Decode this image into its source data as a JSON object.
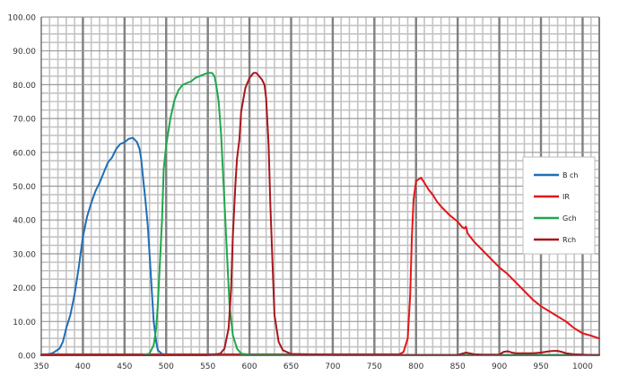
{
  "chart_data": {
    "type": "line",
    "title": "",
    "xlabel": "",
    "ylabel": "",
    "xlim": [
      350,
      1020
    ],
    "ylim": [
      0,
      100
    ],
    "x_ticks": [
      "350",
      "400",
      "450",
      "500",
      "550",
      "600",
      "650",
      "700",
      "750",
      "800",
      "850",
      "900",
      "950",
      "1000"
    ],
    "y_ticks": [
      "0.00",
      "10.00",
      "20.00",
      "30.00",
      "40.00",
      "50.00",
      "60.00",
      "70.00",
      "80.00",
      "90.00",
      "100.00"
    ],
    "grid": true,
    "legend_position": "right",
    "series": [
      {
        "name": "B ch",
        "color": "#1f6fb5",
        "x": [
          350,
          362,
          366,
          372,
          376,
          380,
          385,
          390,
          395,
          400,
          405,
          410,
          415,
          420,
          425,
          430,
          435,
          440,
          445,
          450,
          455,
          460,
          465,
          468,
          470,
          472,
          475,
          478,
          480,
          483,
          485,
          488,
          490,
          495,
          500,
          510,
          550,
          600,
          700,
          800,
          900,
          1000,
          1020
        ],
        "y": [
          0,
          0.5,
          1.0,
          2.0,
          4.0,
          8.0,
          12.0,
          18.0,
          26.0,
          35.0,
          41.0,
          45.0,
          48.5,
          51.0,
          54.0,
          57.0,
          58.5,
          61.0,
          62.5,
          63.0,
          64.0,
          64.3,
          63.0,
          61.0,
          58.0,
          53.0,
          46.0,
          38.0,
          30.0,
          18.0,
          10.0,
          4.0,
          1.5,
          0.4,
          0.2,
          0.1,
          0.05,
          0.05,
          0.05,
          0.05,
          0.05,
          0.05,
          0.05
        ]
      },
      {
        "name": "IR",
        "color": "#e3161b",
        "x": [
          350,
          500,
          600,
          700,
          780,
          785,
          790,
          793,
          795,
          797,
          800,
          803,
          806,
          810,
          815,
          820,
          825,
          830,
          840,
          850,
          855,
          858,
          860,
          862,
          870,
          880,
          890,
          900,
          910,
          920,
          930,
          940,
          950,
          960,
          970,
          980,
          990,
          1000,
          1010,
          1020
        ],
        "y": [
          0.3,
          0.3,
          0.3,
          0.3,
          0.3,
          1.0,
          5.0,
          18.0,
          35.0,
          46.0,
          51.5,
          52.0,
          52.5,
          51.0,
          49.0,
          47.5,
          45.5,
          44.0,
          41.5,
          39.5,
          38.0,
          37.5,
          38.0,
          36.0,
          33.5,
          31.0,
          28.5,
          26.0,
          24.0,
          21.5,
          19.0,
          16.5,
          14.5,
          13.0,
          11.5,
          10.0,
          8.0,
          6.5,
          5.8,
          5.0
        ]
      },
      {
        "name": "Gch",
        "color": "#1ea84b",
        "x": [
          350,
          470,
          480,
          485,
          488,
          490,
          492,
          495,
          497,
          500,
          505,
          510,
          515,
          520,
          525,
          530,
          535,
          540,
          545,
          550,
          555,
          558,
          560,
          563,
          566,
          570,
          573,
          576,
          580,
          585,
          590,
          600,
          650,
          700,
          800,
          900,
          1000,
          1020
        ],
        "y": [
          0,
          0,
          0.5,
          3.0,
          8.0,
          15.0,
          25.0,
          40.0,
          55.0,
          62.0,
          70.0,
          75.5,
          78.5,
          80.0,
          80.5,
          81.0,
          82.0,
          82.5,
          83.0,
          83.5,
          83.5,
          82.5,
          80.0,
          75.0,
          65.0,
          45.0,
          30.0,
          15.0,
          6.0,
          2.0,
          0.5,
          0.2,
          0.1,
          0.1,
          0.1,
          0.1,
          0.1,
          0.1
        ]
      },
      {
        "name": "Rch",
        "color": "#a8161c",
        "x": [
          350,
          550,
          565,
          570,
          575,
          578,
          580,
          583,
          585,
          588,
          590,
          595,
          600,
          605,
          608,
          610,
          615,
          618,
          620,
          623,
          625,
          628,
          630,
          635,
          640,
          650,
          700,
          850,
          860,
          870,
          880,
          890,
          900,
          905,
          910,
          915,
          920,
          930,
          940,
          950,
          960,
          965,
          970,
          975,
          980,
          990,
          1000,
          1010,
          1020
        ],
        "y": [
          0,
          0,
          0.5,
          2.0,
          8.0,
          20.0,
          35.0,
          50.0,
          58.0,
          64.0,
          72.0,
          79.0,
          82.0,
          83.5,
          83.5,
          83.0,
          81.5,
          80.0,
          76.0,
          62.0,
          45.0,
          25.0,
          12.0,
          4.0,
          1.5,
          0.4,
          0.1,
          0.1,
          0.8,
          0.3,
          0.2,
          0.2,
          0.2,
          1.0,
          1.2,
          0.8,
          0.6,
          0.6,
          0.6,
          0.8,
          1.2,
          1.3,
          1.3,
          1.0,
          0.6,
          0.3,
          0.2,
          0.1,
          0.1
        ]
      }
    ]
  }
}
